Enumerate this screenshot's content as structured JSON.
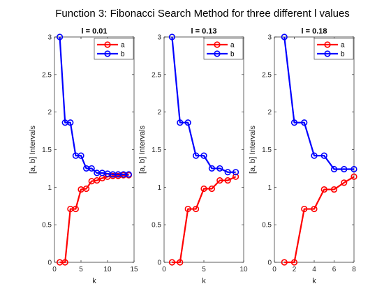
{
  "figure_title": "Function 3: Fibonacci Search Method for three different l values",
  "chart_data": [
    {
      "type": "line",
      "title": "l = 0.01",
      "xlabel": "k",
      "ylabel": "[a, b] Intervals",
      "xlim": [
        0,
        15
      ],
      "ylim": [
        0,
        3
      ],
      "xticks": [
        0,
        5,
        10,
        15
      ],
      "yticks": [
        0,
        0.5,
        1,
        1.5,
        2,
        2.5,
        3
      ],
      "legend_position": "top-right",
      "series": [
        {
          "name": "a",
          "color": "#ff0000",
          "x": [
            1,
            2,
            3,
            4,
            5,
            6,
            7,
            8,
            9,
            10,
            11,
            12,
            13,
            14
          ],
          "y": [
            0,
            0,
            0.71,
            0.71,
            0.97,
            0.98,
            1.08,
            1.09,
            1.12,
            1.14,
            1.15,
            1.15,
            1.16,
            1.16
          ]
        },
        {
          "name": "b",
          "color": "#0000ff",
          "x": [
            1,
            2,
            3,
            4,
            5,
            6,
            7,
            8,
            9,
            10,
            11,
            12,
            13,
            14
          ],
          "y": [
            3,
            1.86,
            1.86,
            1.42,
            1.42,
            1.25,
            1.25,
            1.19,
            1.19,
            1.18,
            1.17,
            1.17,
            1.17,
            1.17
          ]
        }
      ]
    },
    {
      "type": "line",
      "title": "l = 0.13",
      "xlabel": "k",
      "ylabel": "[a, b] Intervals",
      "xlim": [
        0,
        10
      ],
      "ylim": [
        0,
        3
      ],
      "xticks": [
        0,
        5,
        10
      ],
      "yticks": [
        0,
        0.5,
        1,
        1.5,
        2,
        2.5,
        3
      ],
      "legend_position": "top-right",
      "series": [
        {
          "name": "a",
          "color": "#ff0000",
          "x": [
            1,
            2,
            3,
            4,
            5,
            6,
            7,
            8,
            9
          ],
          "y": [
            0,
            0,
            0.71,
            0.71,
            0.98,
            0.98,
            1.09,
            1.09,
            1.14
          ]
        },
        {
          "name": "b",
          "color": "#0000ff",
          "x": [
            1,
            2,
            3,
            4,
            5,
            6,
            7,
            8,
            9
          ],
          "y": [
            3,
            1.86,
            1.86,
            1.42,
            1.42,
            1.25,
            1.25,
            1.2,
            1.2
          ]
        }
      ]
    },
    {
      "type": "line",
      "title": "l = 0.18",
      "xlabel": "k",
      "ylabel": "[a, b] Intervals",
      "xlim": [
        0,
        8
      ],
      "ylim": [
        0,
        3
      ],
      "xticks": [
        0,
        2,
        4,
        6,
        8
      ],
      "yticks": [
        0,
        0.5,
        1,
        1.5,
        2,
        2.5,
        3
      ],
      "legend_position": "top-right",
      "series": [
        {
          "name": "a",
          "color": "#ff0000",
          "x": [
            1,
            2,
            3,
            4,
            5,
            6,
            7,
            8
          ],
          "y": [
            0,
            0,
            0.71,
            0.71,
            0.97,
            0.97,
            1.06,
            1.14
          ]
        },
        {
          "name": "b",
          "color": "#0000ff",
          "x": [
            1,
            2,
            3,
            4,
            5,
            6,
            7,
            8
          ],
          "y": [
            3,
            1.86,
            1.86,
            1.42,
            1.42,
            1.24,
            1.24,
            1.24
          ]
        }
      ]
    }
  ]
}
